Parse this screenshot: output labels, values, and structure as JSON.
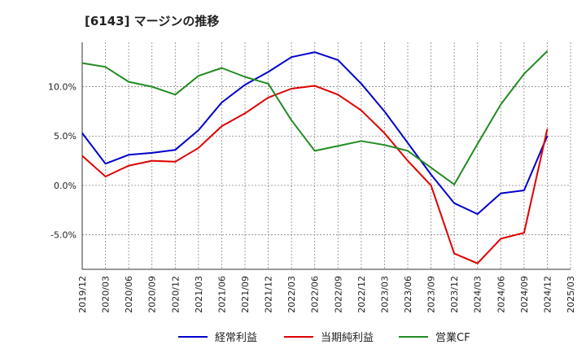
{
  "chart_data": {
    "type": "line",
    "title": "[6143]  マージンの推移",
    "xlabel": "",
    "ylabel": "",
    "x": [
      "2019/12",
      "2020/03",
      "2020/06",
      "2020/09",
      "2020/12",
      "2021/03",
      "2021/06",
      "2021/09",
      "2021/12",
      "2022/03",
      "2022/06",
      "2022/09",
      "2022/12",
      "2023/03",
      "2023/06",
      "2023/09",
      "2023/12",
      "2024/03",
      "2024/06",
      "2024/09",
      "2024/12",
      "2025/03"
    ],
    "ylim": [
      -8.5,
      14.5
    ],
    "yticks": [
      -5.0,
      0.0,
      5.0,
      10.0
    ],
    "ytick_labels": [
      "-5.0%",
      "0.0%",
      "5.0%",
      "10.0%"
    ],
    "grid": true,
    "legend_position": "bottom",
    "series": [
      {
        "name": "経常利益",
        "color": "#0000cc",
        "values": [
          5.3,
          2.2,
          3.1,
          3.3,
          3.6,
          5.6,
          8.4,
          10.2,
          11.5,
          13.0,
          13.5,
          12.7,
          10.3,
          7.5,
          4.3,
          1.1,
          -1.8,
          -2.9,
          -0.8,
          -0.5,
          5.0,
          null
        ]
      },
      {
        "name": "当期純利益",
        "color": "#dd0000",
        "values": [
          3.0,
          0.9,
          2.0,
          2.5,
          2.4,
          3.8,
          6.0,
          7.3,
          8.9,
          9.8,
          10.1,
          9.2,
          7.6,
          5.3,
          2.5,
          0.0,
          -6.9,
          -7.9,
          -5.4,
          -4.8,
          5.7,
          null
        ]
      },
      {
        "name": "営業CF",
        "color": "#228b22",
        "values": [
          12.4,
          12.0,
          10.5,
          10.0,
          9.2,
          11.1,
          11.9,
          11.0,
          10.3,
          6.6,
          3.5,
          4.0,
          4.5,
          4.1,
          3.5,
          1.8,
          0.1,
          4.2,
          8.2,
          11.3,
          13.6,
          null
        ]
      }
    ]
  }
}
